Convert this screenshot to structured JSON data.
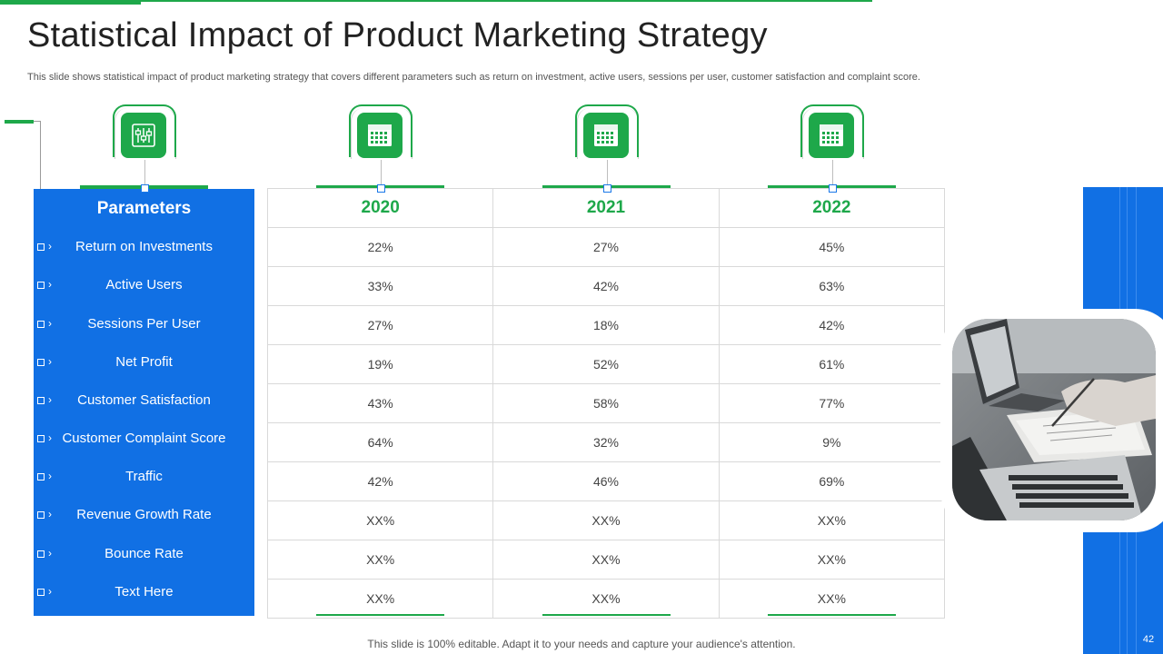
{
  "slide": {
    "title": "Statistical Impact of Product Marketing Strategy",
    "subtitle": "This slide shows statistical impact of product marketing strategy that covers different parameters such as return on investment, active users, sessions per user, customer satisfaction and complaint score.",
    "footer": "This slide is 100% editable. Adapt it to your needs and capture your audience's attention.",
    "page_number": "42"
  },
  "parameters": {
    "header": "Parameters",
    "items": [
      "Return on Investments",
      "Active Users",
      "Sessions Per User",
      "Net Profit",
      "Customer Satisfaction",
      "Customer Complaint Score",
      "Traffic",
      "Revenue Growth Rate",
      "Bounce Rate",
      "Text Here"
    ]
  },
  "table": {
    "years": [
      "2020",
      "2021",
      "2022"
    ],
    "rows": [
      [
        "22%",
        "27%",
        "45%"
      ],
      [
        "33%",
        "42%",
        "63%"
      ],
      [
        "27%",
        "18%",
        "42%"
      ],
      [
        "19%",
        "52%",
        "61%"
      ],
      [
        "43%",
        "58%",
        "77%"
      ],
      [
        "64%",
        "32%",
        "9%"
      ],
      [
        "42%",
        "46%",
        "69%"
      ],
      [
        "XX%",
        "XX%",
        "XX%"
      ],
      [
        "XX%",
        "XX%",
        "XX%"
      ],
      [
        "XX%",
        "XX%",
        "XX%"
      ]
    ]
  },
  "icons": {
    "parameters": "sliders-icon",
    "years": [
      "calendar-icon",
      "calendar-icon",
      "calendar-icon"
    ]
  },
  "colors": {
    "accent_green": "#1ea84a",
    "accent_blue": "#1170e4"
  }
}
